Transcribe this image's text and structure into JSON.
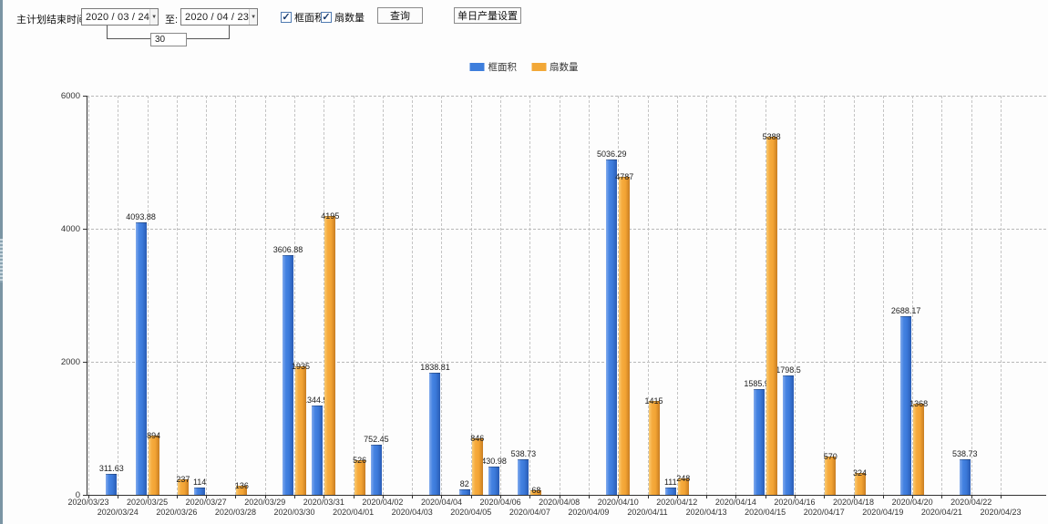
{
  "icons": {
    "dropdown_arrow": "▼",
    "checkbox_check": "✓"
  },
  "toolbar": {
    "label_plan_end": "主计划结束时间:",
    "date_from": "2020 / 03 / 24",
    "to_label": "至:",
    "date_to": "2020 / 04 / 23",
    "days_value": "30",
    "checkbox_area": {
      "label": "框面积",
      "checked": true
    },
    "checkbox_fans": {
      "label": "扇数量",
      "checked": true
    },
    "query_button": "查询",
    "daily_output_button": "单日产量设置"
  },
  "chart_data": {
    "type": "bar",
    "title": "",
    "xlabel": "",
    "ylabel": "",
    "ylim": [
      0,
      6000
    ],
    "yticks": [
      0,
      2000,
      4000,
      6000
    ],
    "grid": true,
    "legend_position": "top",
    "bar_value_labels": true,
    "categories": [
      "2020/03/23",
      "2020/03/24",
      "2020/03/25",
      "2020/03/26",
      "2020/03/27",
      "2020/03/28",
      "2020/03/29",
      "2020/03/30",
      "2020/03/31",
      "2020/04/01",
      "2020/04/02",
      "2020/04/03",
      "2020/04/04",
      "2020/04/05",
      "2020/04/06",
      "2020/04/07",
      "2020/04/08",
      "2020/04/09",
      "2020/04/10",
      "2020/04/11",
      "2020/04/12",
      "2020/04/13",
      "2020/04/14",
      "2020/04/15",
      "2020/04/16",
      "2020/04/17",
      "2020/04/18",
      "2020/04/19",
      "2020/04/20",
      "2020/04/21",
      "2020/04/22",
      "2020/04/23"
    ],
    "series": [
      {
        "name": "框面积",
        "color": "#3E7EDC",
        "values": [
          null,
          311.63,
          4093.88,
          null,
          114,
          null,
          null,
          3606.88,
          1344.95,
          null,
          752.45,
          null,
          1838.81,
          82,
          430.98,
          538.73,
          null,
          null,
          5036.29,
          null,
          111,
          null,
          null,
          1585.96,
          1798.5,
          null,
          null,
          null,
          2688.17,
          null,
          538.73,
          null
        ]
      },
      {
        "name": "扇数量",
        "color": "#F2A837",
        "values": [
          null,
          null,
          894,
          237,
          null,
          136,
          null,
          1935,
          4195,
          526,
          null,
          null,
          null,
          846,
          null,
          68,
          null,
          null,
          4787,
          1415,
          248,
          null,
          null,
          5388,
          null,
          570,
          324,
          null,
          1368,
          null,
          null,
          null
        ]
      }
    ]
  }
}
